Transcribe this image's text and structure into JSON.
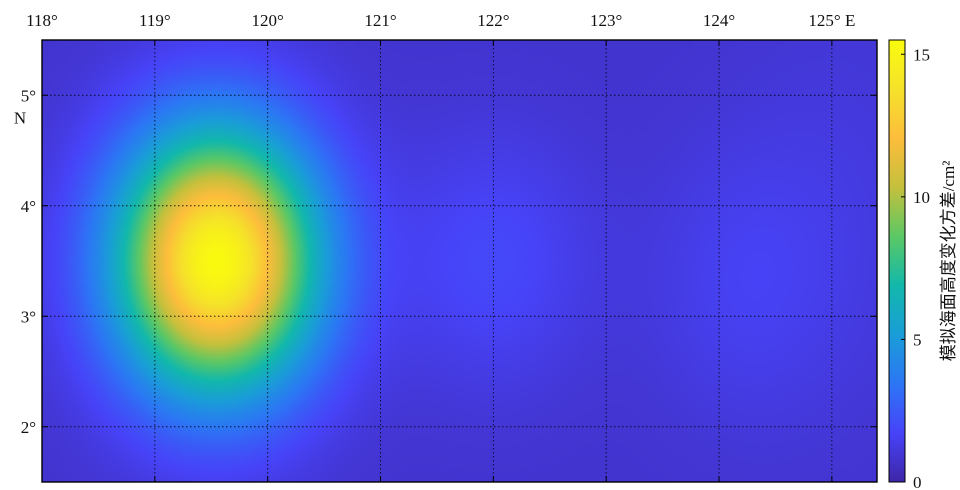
{
  "chart_data": {
    "type": "heatmap",
    "title": "",
    "xlabel": "",
    "ylabel": "",
    "xlim": [
      118,
      125.4
    ],
    "ylim": [
      1.5,
      5.5
    ],
    "x_ticks": [
      {
        "value": 118,
        "label": "118°"
      },
      {
        "value": 119,
        "label": "119°"
      },
      {
        "value": 120,
        "label": "120°"
      },
      {
        "value": 121,
        "label": "121°"
      },
      {
        "value": 122,
        "label": "122°"
      },
      {
        "value": 123,
        "label": "123°"
      },
      {
        "value": 124,
        "label": "124°"
      },
      {
        "value": 125,
        "label": "125° E"
      }
    ],
    "y_ticks": [
      {
        "value": 5,
        "label": "5°",
        "sublabel": "N"
      },
      {
        "value": 4,
        "label": "4°"
      },
      {
        "value": 3,
        "label": "3°"
      },
      {
        "value": 2,
        "label": "2°"
      }
    ],
    "grid": true,
    "colorbar": {
      "title": "模拟海面高度变化方差/cm²",
      "range": [
        0,
        15.5
      ],
      "ticks": [
        {
          "value": 0,
          "label": "0"
        },
        {
          "value": 5,
          "label": "5"
        },
        {
          "value": 10,
          "label": "10"
        },
        {
          "value": 15,
          "label": "15"
        }
      ],
      "colormap": "parula",
      "colors": [
        "#3e26a8",
        "#4743f8",
        "#2c76f5",
        "#1a9dd8",
        "#12b8ab",
        "#5bc865",
        "#c4c03c",
        "#fdbd3c",
        "#f5e22a",
        "#f9fb0e"
      ]
    },
    "background_value": 0.8,
    "features": [
      {
        "name": "main-peak",
        "center": [
          119.55,
          3.5
        ],
        "peak": 14.6,
        "sigma_lon": 0.62,
        "sigma_lat": 0.82
      },
      {
        "name": "weak-blob-1",
        "center": [
          122.0,
          3.5
        ],
        "peak": 1.1,
        "sigma_lon": 0.6,
        "sigma_lat": 0.8
      },
      {
        "name": "weak-blob-2",
        "center": [
          124.2,
          3.3
        ],
        "peak": 0.7,
        "sigma_lon": 0.6,
        "sigma_lat": 0.9
      },
      {
        "name": "faint-band-east",
        "center": [
          125.1,
          4.0
        ],
        "peak": 0.35,
        "sigma_lon": 0.7,
        "sigma_lat": 1.4
      }
    ]
  }
}
